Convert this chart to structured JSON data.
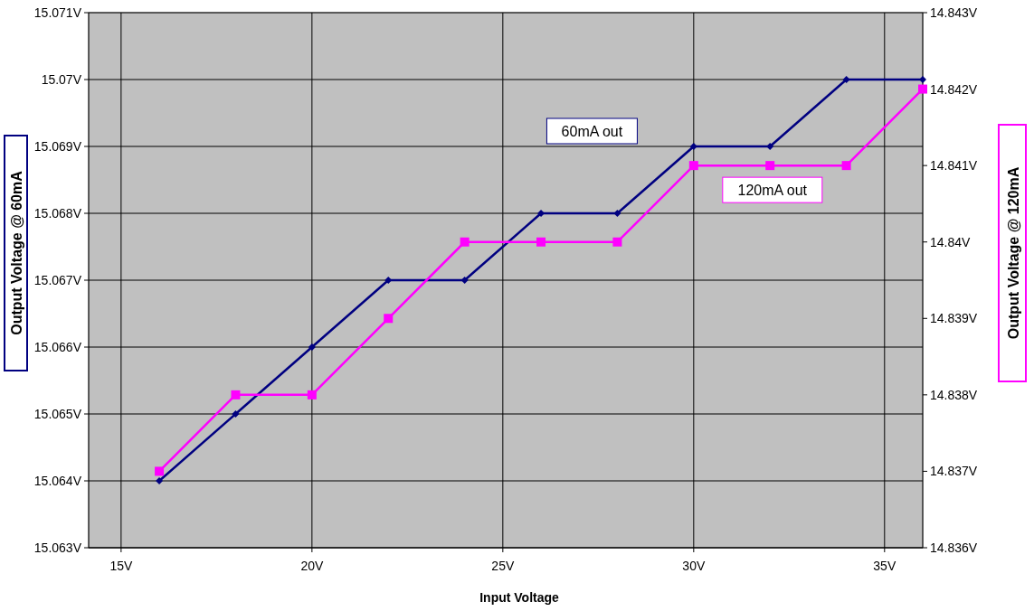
{
  "chart_data": {
    "type": "line",
    "xlabel": "Input Voltage",
    "ylabel": "Output Voltage @ 60mA",
    "y2label": "Output Voltage @ 120mA",
    "x": [
      16,
      18,
      20,
      22,
      24,
      26,
      28,
      30,
      32,
      34,
      36
    ],
    "xlim": [
      14.15,
      36
    ],
    "xticks": [
      {
        "value": 15,
        "label": "15V"
      },
      {
        "value": 20,
        "label": "20V"
      },
      {
        "value": 25,
        "label": "25V"
      },
      {
        "value": 30,
        "label": "30V"
      },
      {
        "value": 35,
        "label": "35V"
      }
    ],
    "ylim": [
      15.063,
      15.071
    ],
    "yticks": [
      {
        "value": 15.063,
        "label": "15.063V"
      },
      {
        "value": 15.064,
        "label": "15.064V"
      },
      {
        "value": 15.065,
        "label": "15.065V"
      },
      {
        "value": 15.066,
        "label": "15.066V"
      },
      {
        "value": 15.067,
        "label": "15.067V"
      },
      {
        "value": 15.068,
        "label": "15.068V"
      },
      {
        "value": 15.069,
        "label": "15.069V"
      },
      {
        "value": 15.07,
        "label": "15.07V"
      },
      {
        "value": 15.071,
        "label": "15.071V"
      }
    ],
    "y2lim": [
      14.836,
      14.843
    ],
    "y2ticks": [
      {
        "value": 14.836,
        "label": "14.836V"
      },
      {
        "value": 14.837,
        "label": "14.837V"
      },
      {
        "value": 14.838,
        "label": "14.838V"
      },
      {
        "value": 14.839,
        "label": "14.839V"
      },
      {
        "value": 14.84,
        "label": "14.84V"
      },
      {
        "value": 14.841,
        "label": "14.841V"
      },
      {
        "value": 14.842,
        "label": "14.842V"
      },
      {
        "value": 14.843,
        "label": "14.843V"
      }
    ],
    "grid": true,
    "series": [
      {
        "name": "60mA out",
        "color": "#000080",
        "marker": "diamond",
        "values": [
          15.064,
          15.065,
          15.066,
          15.067,
          15.067,
          15.068,
          15.068,
          15.069,
          15.069,
          15.07,
          15.07
        ]
      },
      {
        "name": "120mA out",
        "color": "#ff00ff",
        "marker": "square",
        "axis": "y2",
        "values": [
          14.837,
          14.838,
          14.838,
          14.839,
          14.84,
          14.84,
          14.84,
          14.841,
          14.841,
          14.841,
          14.842
        ]
      }
    ]
  }
}
